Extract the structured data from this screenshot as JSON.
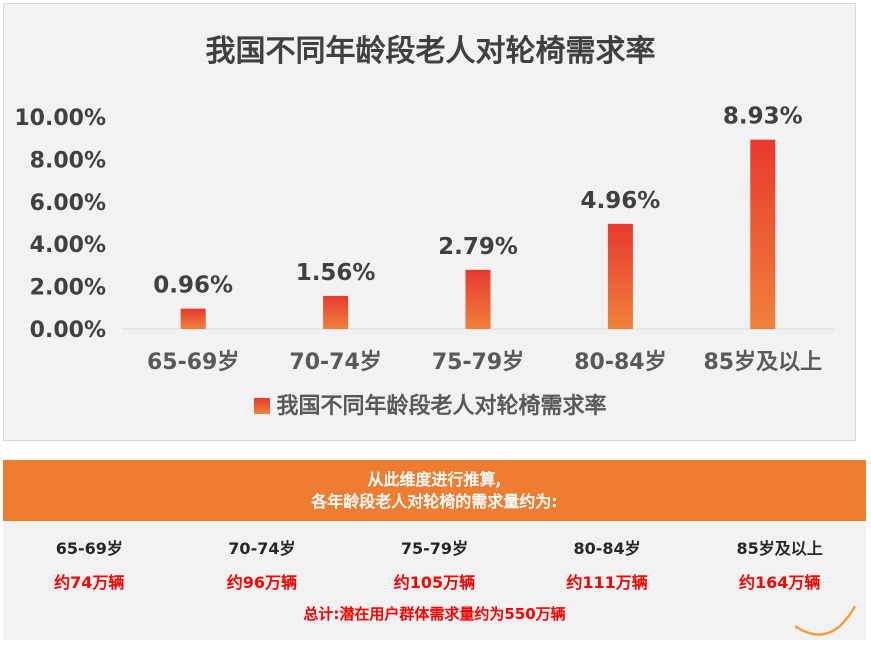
{
  "chart_data": {
    "type": "bar",
    "title": "我国不同年龄段老人对轮椅需求率",
    "categories": [
      "65-69岁",
      "70-74岁",
      "75-79岁",
      "80-84岁",
      "85岁及以上"
    ],
    "series": [
      {
        "name": "我国不同年龄段老人对轮椅需求率",
        "values": [
          0.96,
          1.56,
          2.79,
          4.96,
          8.93
        ]
      }
    ],
    "value_labels": [
      "0.96%",
      "1.56%",
      "2.79%",
      "4.96%",
      "8.93%"
    ],
    "yticks": [
      "0.00%",
      "2.00%",
      "4.00%",
      "6.00%",
      "8.00%",
      "10.00%"
    ],
    "ylim": [
      0,
      10
    ],
    "grid": false,
    "legend_position": "bottom",
    "colors": {
      "bar_top": "#e8392e",
      "bar_bottom": "#f0813a",
      "axis": "#d9d9d9",
      "text": "#404040"
    }
  },
  "estimate": {
    "header_line1": "从此维度进行推算,",
    "header_line2": "各年龄段老人对轮椅的需求量约为:",
    "ages": [
      "65-69岁",
      "70-74岁",
      "75-79岁",
      "80-84岁",
      "85岁及以上"
    ],
    "counts": [
      "约74万辆",
      "约96万辆",
      "约105万辆",
      "约111万辆",
      "约164万辆"
    ],
    "total": "总计:潜在用户群体需求量约为550万辆",
    "colors": {
      "header_bg": "#ef7d31",
      "count_text": "#ff0000"
    }
  }
}
